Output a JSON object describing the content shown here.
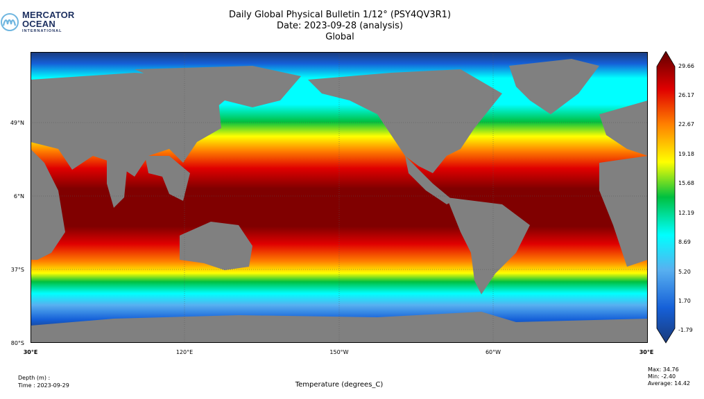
{
  "logo": {
    "line1": "MERCATOR",
    "line2": "OCEAN",
    "line3": "INTERNATIONAL"
  },
  "header": {
    "title_line1": "Daily Global Physical Bulletin 1/12° (PSY4QV3R1)",
    "title_line2": "Date: 2023-09-28 (analysis)",
    "title_line3": "Global"
  },
  "map": {
    "lat_labels": [
      "49°N",
      "6°N",
      "37°S",
      "80°S"
    ],
    "lon_labels": [
      "30°E",
      "120°E",
      "150°W",
      "60°W",
      "30°E"
    ],
    "land_color": "#808080"
  },
  "colorbar": {
    "ticks": [
      "29.66",
      "26.17",
      "22.67",
      "19.18",
      "15.68",
      "12.19",
      "8.69",
      "5.20",
      "1.70",
      "-1.79"
    ],
    "colors": [
      "#1a3a7a",
      "#1560d8",
      "#58b0f0",
      "#00ffff",
      "#00c040",
      "#ffff00",
      "#ff8000",
      "#e00000",
      "#600000"
    ]
  },
  "footer": {
    "depth": "Depth (m) :",
    "time": "Time : 2023-09-29",
    "variable": "Temperature (degrees_C)",
    "max": "Max: 34.76",
    "min": "Min: -2.40",
    "average": "Average: 14.42"
  }
}
